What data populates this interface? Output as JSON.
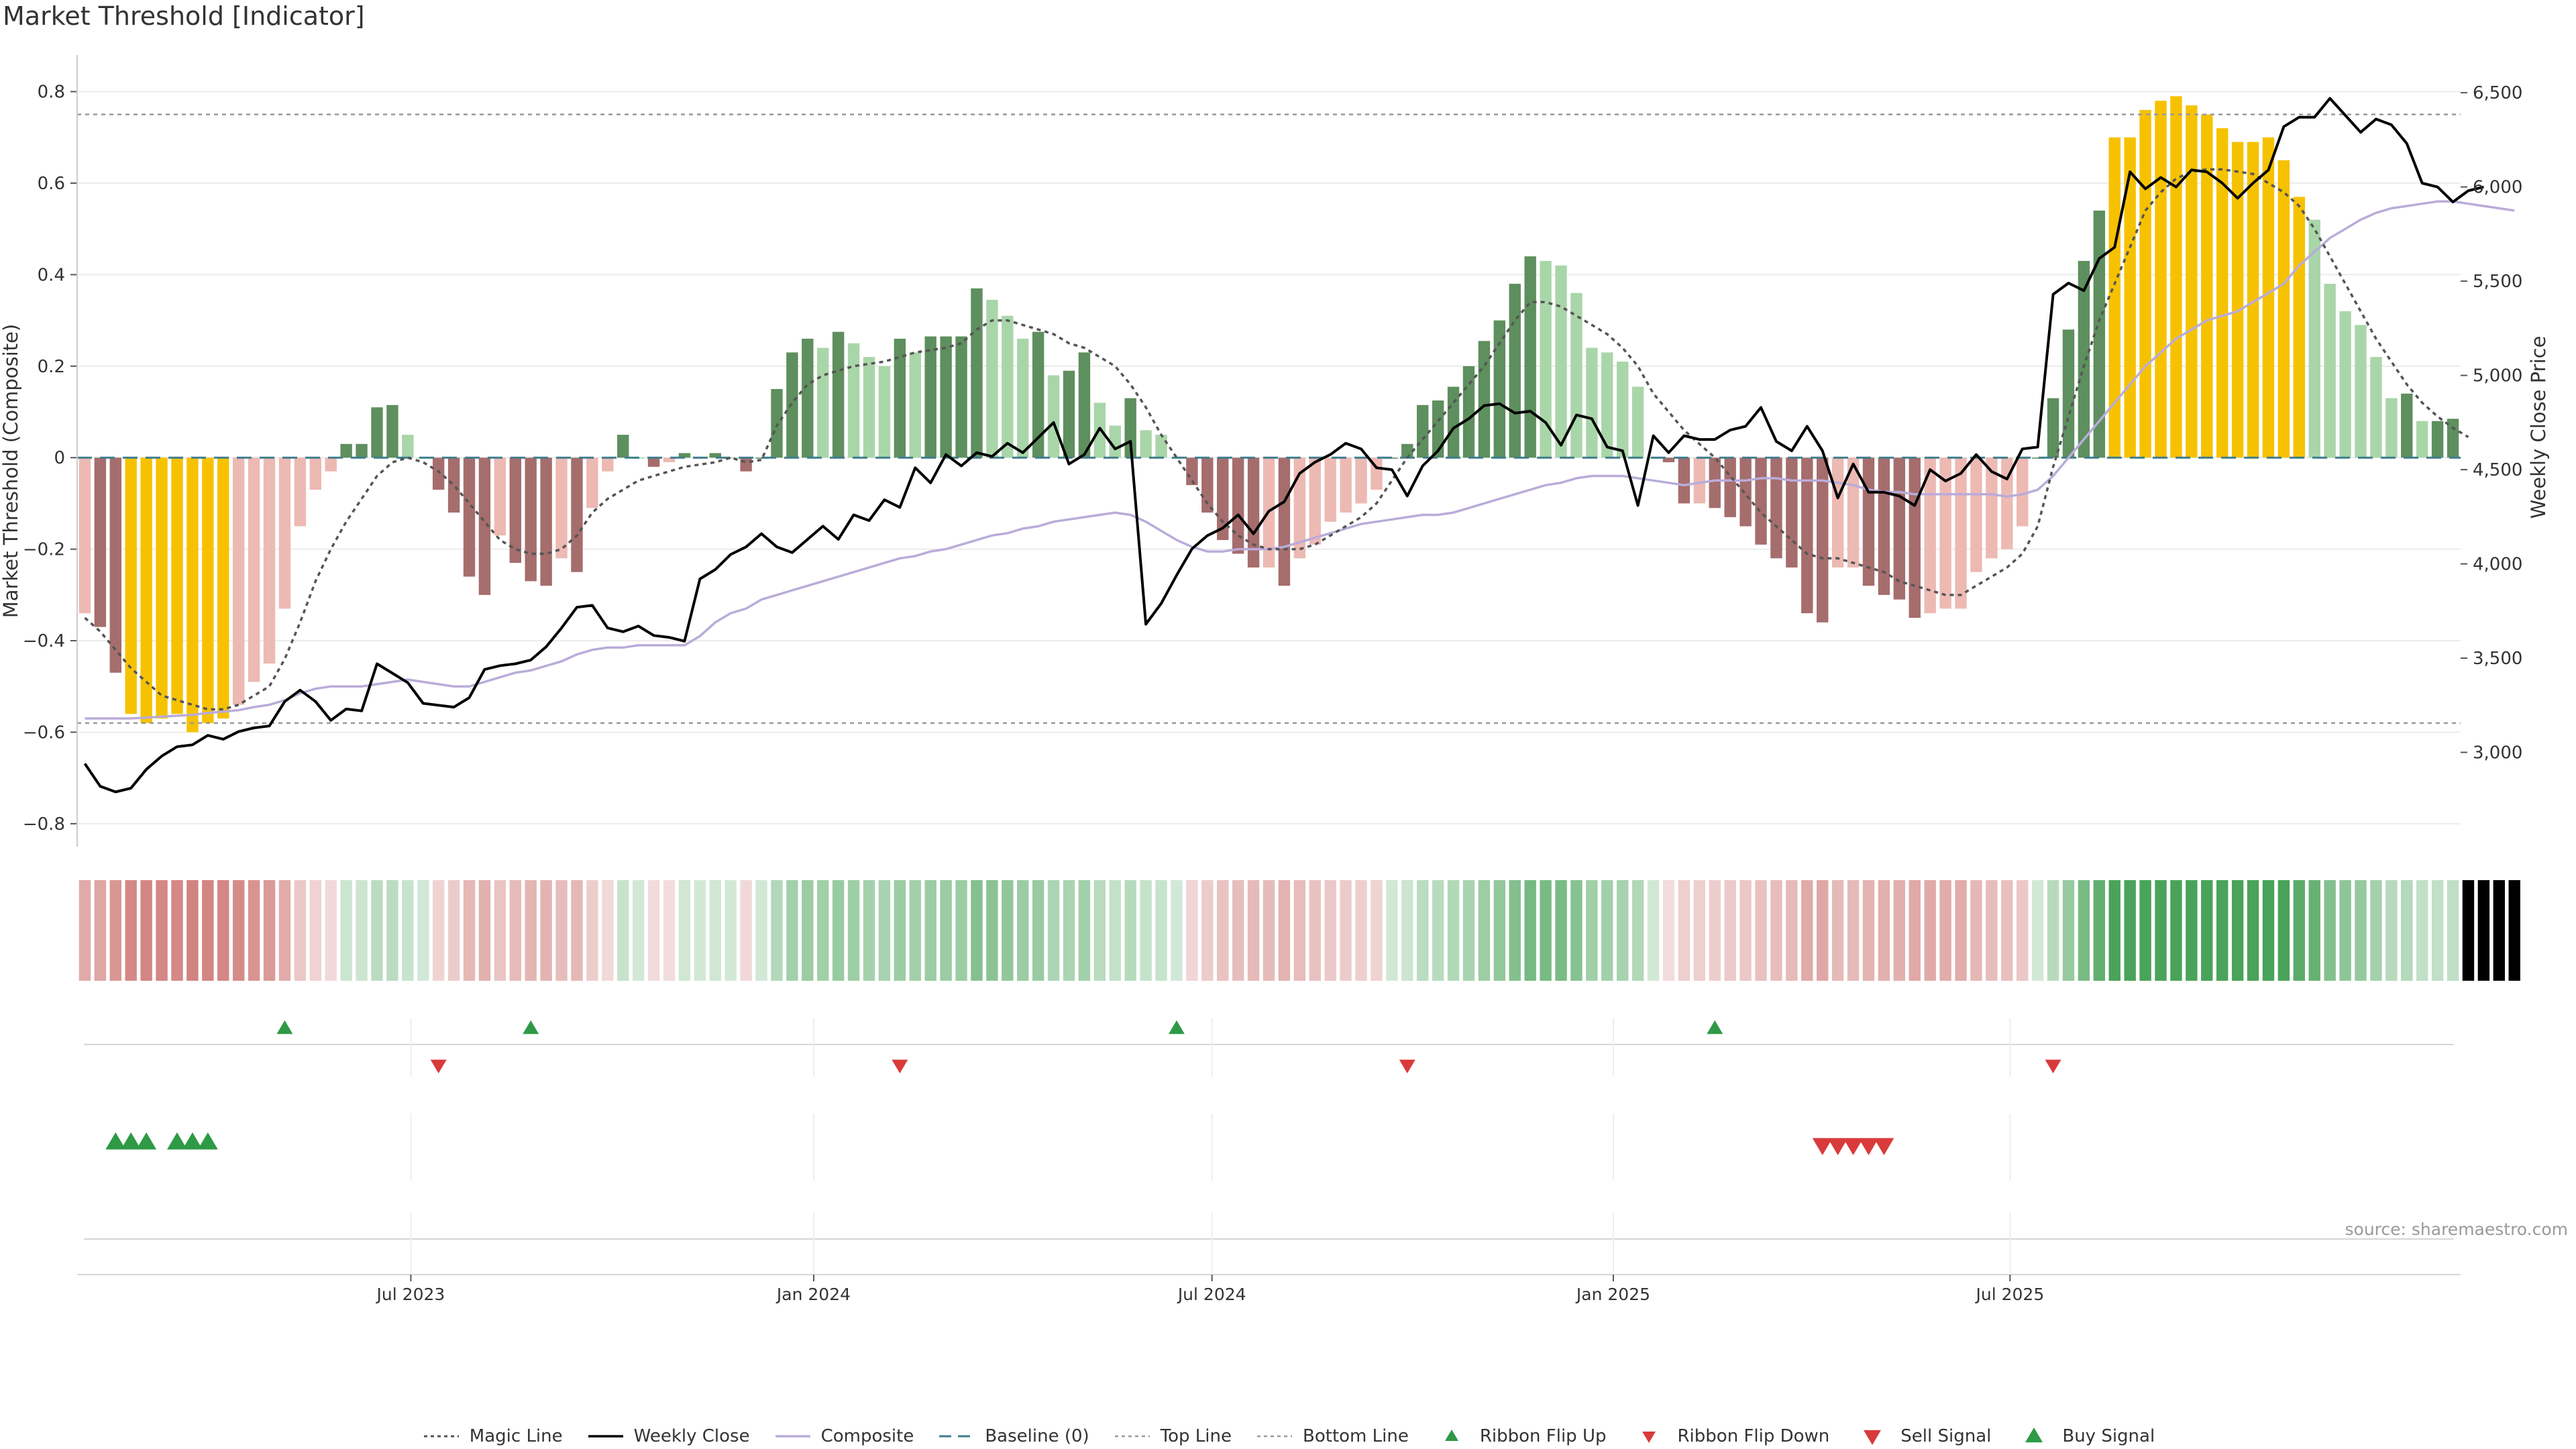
{
  "title": "Market Threshold [Indicator]",
  "source": "source: sharemaestro.com",
  "chart_data": {
    "type": "bar",
    "title": "Market Threshold [Indicator]",
    "ylabel": "Market Threshold (Composite)",
    "y2label": "Weekly Close Price",
    "ylim": [
      -0.85,
      0.88
    ],
    "y2lim": [
      2500,
      6700
    ],
    "yticks": [
      "0.8",
      "0.6",
      "0.4",
      "0.2",
      "0",
      "−0.2",
      "−0.4",
      "−0.6",
      "−0.8"
    ],
    "y2ticks": [
      "6,500",
      "6,000",
      "5,500",
      "5,000",
      "4,500",
      "4,000",
      "3,500",
      "3,000"
    ],
    "xticks": [
      "Jul 2023",
      "Jan 2024",
      "Jul 2024",
      "Jan 2025",
      "Jul 2025"
    ],
    "xtick_weeks": [
      21.7,
      47.9,
      73.8,
      99.9,
      125.7
    ],
    "top_line": 0.75,
    "bottom_line": -0.58,
    "baseline": 0,
    "grid": true,
    "legend_position": "bottom",
    "series": [
      {
        "name": "Composite",
        "role": "bars",
        "values": [
          -0.34,
          -0.37,
          -0.47,
          -0.56,
          -0.58,
          -0.57,
          -0.56,
          -0.6,
          -0.58,
          -0.57,
          -0.54,
          -0.49,
          -0.45,
          -0.33,
          -0.15,
          -0.07,
          -0.03,
          0.03,
          0.03,
          0.11,
          0.115,
          0.05,
          0.0,
          -0.07,
          -0.12,
          -0.26,
          -0.3,
          -0.17,
          -0.23,
          -0.27,
          -0.28,
          -0.22,
          -0.25,
          -0.11,
          -0.03,
          0.05,
          0.0,
          -0.02,
          -0.01,
          0.01,
          0.0,
          0.01,
          0.0,
          -0.03,
          0.0,
          0.15,
          0.23,
          0.26,
          0.24,
          0.275,
          0.25,
          0.22,
          0.2,
          0.26,
          0.23,
          0.265,
          0.265,
          0.265,
          0.37,
          0.345,
          0.31,
          0.26,
          0.275,
          0.18,
          0.19,
          0.23,
          0.12,
          0.07,
          0.13,
          0.06,
          0.05,
          0.0,
          -0.06,
          -0.12,
          -0.18,
          -0.21,
          -0.24,
          -0.24,
          -0.28,
          -0.22,
          -0.19,
          -0.14,
          -0.12,
          -0.1,
          -0.07,
          0.0,
          0.03,
          0.115,
          0.125,
          0.155,
          0.2,
          0.255,
          0.3,
          0.38,
          0.44,
          0.43,
          0.42,
          0.36,
          0.24,
          0.23,
          0.21,
          0.155,
          0.0,
          -0.01,
          -0.1,
          -0.1,
          -0.11,
          -0.13,
          -0.15,
          -0.19,
          -0.22,
          -0.24,
          -0.34,
          -0.36,
          -0.24,
          -0.24,
          -0.28,
          -0.3,
          -0.31,
          -0.35,
          -0.34,
          -0.33,
          -0.33,
          -0.25,
          -0.22,
          -0.2,
          -0.15,
          0.0,
          0.13,
          0.28,
          0.43,
          0.54,
          0.7,
          0.7,
          0.76,
          0.78,
          0.79,
          0.77,
          0.75,
          0.72,
          0.69,
          0.69,
          0.7,
          0.65,
          0.57,
          0.52,
          0.38,
          0.32,
          0.29,
          0.22,
          0.13,
          0.14,
          0.08,
          0.08,
          0.085
        ]
      },
      {
        "name": "Weekly Close",
        "values": [
          2940,
          2820,
          2790,
          2810,
          2910,
          2980,
          3030,
          3040,
          3090,
          3070,
          3110,
          3130,
          3140,
          3270,
          3330,
          3270,
          3170,
          3230,
          3220,
          3470,
          3420,
          3370,
          3260,
          3250,
          3240,
          3290,
          3440,
          3460,
          3470,
          3490,
          3560,
          3660,
          3770,
          3780,
          3660,
          3640,
          3670,
          3620,
          3610,
          3590,
          3920,
          3970,
          4050,
          4090,
          4160,
          4090,
          4060,
          4130,
          4200,
          4130,
          4260,
          4230,
          4340,
          4300,
          4510,
          4430,
          4580,
          4520,
          4590,
          4570,
          4640,
          4590,
          4670,
          4750,
          4530,
          4580,
          4720,
          4610,
          4650,
          3680,
          3790,
          3940,
          4080,
          4150,
          4190,
          4260,
          4160,
          4280,
          4330,
          4480,
          4540,
          4580,
          4640,
          4610,
          4510,
          4500,
          4360,
          4520,
          4600,
          4720,
          4770,
          4840,
          4850,
          4800,
          4810,
          4750,
          4630,
          4790,
          4770,
          4620,
          4600,
          4310,
          4680,
          4590,
          4680,
          4660,
          4660,
          4710,
          4730,
          4830,
          4650,
          4600,
          4730,
          4600,
          4350,
          4530,
          4380,
          4380,
          4360,
          4310,
          4500,
          4440,
          4480,
          4580,
          4490,
          4450,
          4610,
          4620,
          5430,
          5490,
          5450,
          5620,
          5680,
          6080,
          5990,
          6050,
          6000,
          6090,
          6080,
          6020,
          5940,
          6020,
          6090,
          6320,
          6370,
          6370,
          6470,
          6380,
          6290,
          6360,
          6330,
          6230,
          6020,
          6000,
          5920,
          5980,
          6000
        ]
      },
      {
        "name": "Magic Line",
        "values": [
          -0.35,
          -0.38,
          -0.42,
          -0.46,
          -0.49,
          -0.52,
          -0.53,
          -0.54,
          -0.55,
          -0.55,
          -0.54,
          -0.52,
          -0.5,
          -0.44,
          -0.36,
          -0.27,
          -0.2,
          -0.14,
          -0.09,
          -0.04,
          -0.01,
          0.0,
          -0.01,
          -0.03,
          -0.06,
          -0.1,
          -0.14,
          -0.18,
          -0.2,
          -0.21,
          -0.21,
          -0.2,
          -0.17,
          -0.12,
          -0.09,
          -0.07,
          -0.05,
          -0.04,
          -0.03,
          -0.02,
          -0.015,
          -0.01,
          0.0,
          -0.01,
          -0.005,
          0.07,
          0.12,
          0.16,
          0.18,
          0.19,
          0.2,
          0.205,
          0.21,
          0.22,
          0.23,
          0.235,
          0.24,
          0.25,
          0.28,
          0.3,
          0.3,
          0.29,
          0.28,
          0.27,
          0.25,
          0.24,
          0.22,
          0.2,
          0.16,
          0.11,
          0.05,
          0.0,
          -0.05,
          -0.1,
          -0.14,
          -0.17,
          -0.19,
          -0.2,
          -0.2,
          -0.2,
          -0.19,
          -0.17,
          -0.15,
          -0.13,
          -0.1,
          -0.05,
          0.0,
          0.04,
          0.08,
          0.12,
          0.16,
          0.2,
          0.25,
          0.3,
          0.34,
          0.34,
          0.33,
          0.31,
          0.29,
          0.27,
          0.24,
          0.2,
          0.14,
          0.1,
          0.06,
          0.03,
          0.0,
          -0.04,
          -0.08,
          -0.12,
          -0.15,
          -0.18,
          -0.21,
          -0.22,
          -0.22,
          -0.23,
          -0.24,
          -0.25,
          -0.27,
          -0.28,
          -0.29,
          -0.3,
          -0.3,
          -0.28,
          -0.26,
          -0.24,
          -0.21,
          -0.15,
          -0.02,
          0.09,
          0.2,
          0.3,
          0.38,
          0.46,
          0.54,
          0.58,
          0.61,
          0.625,
          0.63,
          0.63,
          0.625,
          0.62,
          0.6,
          0.58,
          0.55,
          0.5,
          0.44,
          0.38,
          0.32,
          0.26,
          0.21,
          0.16,
          0.12,
          0.09,
          0.065,
          0.045
        ]
      },
      {
        "name": "Composite",
        "role": "smoothed line",
        "values": [
          -0.57,
          -0.57,
          -0.57,
          -0.57,
          -0.568,
          -0.566,
          -0.564,
          -0.562,
          -0.558,
          -0.555,
          -0.552,
          -0.545,
          -0.54,
          -0.53,
          -0.515,
          -0.505,
          -0.5,
          -0.5,
          -0.5,
          -0.495,
          -0.49,
          -0.485,
          -0.49,
          -0.495,
          -0.5,
          -0.5,
          -0.49,
          -0.48,
          -0.47,
          -0.465,
          -0.455,
          -0.445,
          -0.43,
          -0.42,
          -0.415,
          -0.415,
          -0.41,
          -0.41,
          -0.41,
          -0.41,
          -0.39,
          -0.36,
          -0.34,
          -0.33,
          -0.31,
          -0.3,
          -0.29,
          -0.28,
          -0.27,
          -0.26,
          -0.25,
          -0.24,
          -0.23,
          -0.22,
          -0.215,
          -0.205,
          -0.2,
          -0.19,
          -0.18,
          -0.17,
          -0.165,
          -0.155,
          -0.15,
          -0.14,
          -0.135,
          -0.13,
          -0.125,
          -0.12,
          -0.125,
          -0.14,
          -0.16,
          -0.18,
          -0.195,
          -0.205,
          -0.205,
          -0.2,
          -0.2,
          -0.2,
          -0.195,
          -0.185,
          -0.175,
          -0.165,
          -0.155,
          -0.145,
          -0.14,
          -0.135,
          -0.13,
          -0.125,
          -0.125,
          -0.12,
          -0.11,
          -0.1,
          -0.09,
          -0.08,
          -0.07,
          -0.06,
          -0.055,
          -0.045,
          -0.04,
          -0.04,
          -0.04,
          -0.045,
          -0.05,
          -0.055,
          -0.06,
          -0.055,
          -0.05,
          -0.05,
          -0.05,
          -0.045,
          -0.045,
          -0.05,
          -0.05,
          -0.05,
          -0.055,
          -0.06,
          -0.07,
          -0.075,
          -0.075,
          -0.08,
          -0.08,
          -0.08,
          -0.08,
          -0.08,
          -0.08,
          -0.085,
          -0.08,
          -0.07,
          -0.04,
          0.0,
          0.04,
          0.08,
          0.12,
          0.16,
          0.2,
          0.23,
          0.26,
          0.28,
          0.3,
          0.31,
          0.32,
          0.34,
          0.36,
          0.38,
          0.42,
          0.45,
          0.48,
          0.5,
          0.52,
          0.535,
          0.545,
          0.55,
          0.555,
          0.56,
          0.56,
          0.555,
          0.55,
          0.545,
          0.54
        ]
      }
    ],
    "bar_colors": {
      "strong_up": "#5e8f5e",
      "weak_up": "#a9d6a9",
      "strong_down": "#a66d6d",
      "weak_down": "#edb9b3",
      "extreme": "#f6c200"
    },
    "line_colors": {
      "weekly_close": "#000000",
      "magic_line": "#555555",
      "composite": "#b9acd9",
      "baseline": "#3e7d8c",
      "threshold": "#999999"
    },
    "ribbon_colors": {
      "up": "#4aa35a",
      "down": "#cf7b78"
    },
    "ribbon_flip_up_weeks": [
      13,
      29,
      71,
      106
    ],
    "ribbon_flip_down_weeks": [
      23,
      53,
      86,
      128
    ],
    "buy_signal_weeks": [
      2,
      3,
      4,
      6,
      7,
      8
    ],
    "sell_signal_weeks": [
      113,
      114,
      115,
      116,
      117
    ],
    "signal_colors": {
      "buy": "#2e9a45",
      "sell": "#d93a3a"
    },
    "legend": [
      {
        "label": "Magic Line",
        "style": "dotted"
      },
      {
        "label": "Weekly Close",
        "style": "solid-black"
      },
      {
        "label": "Composite",
        "style": "solid-lavender"
      },
      {
        "label": "Baseline (0)",
        "style": "dashed"
      },
      {
        "label": "Top Line",
        "style": "dotted-grey"
      },
      {
        "label": "Bottom Line",
        "style": "dotted-grey"
      },
      {
        "label": "Ribbon Flip Up",
        "style": "triangle-up-green"
      },
      {
        "label": "Ribbon Flip Down",
        "style": "triangle-down-red"
      },
      {
        "label": "Sell Signal",
        "style": "triangle-down-red-large"
      },
      {
        "label": "Buy Signal",
        "style": "triangle-up-green-large"
      }
    ]
  }
}
